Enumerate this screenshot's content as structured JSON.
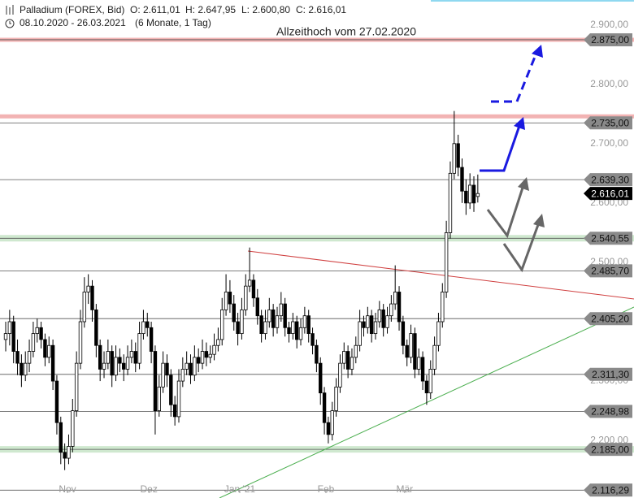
{
  "chart_data": {
    "type": "candlestick",
    "title": "Palladium (FOREX, Bid)",
    "header": {
      "o": "O: 2.611,01",
      "h": "H: 2.647,95",
      "l": "L: 2.600,80",
      "c": "C: 2.616,01",
      "range": "08.10.2020 - 26.03.2021",
      "period": "(6 Monate, 1 Tag)"
    },
    "annotation": "Allzeithoch vom 27.02.2020",
    "ylim": [
      2103,
      2942
    ],
    "xlim": [
      -1.45,
      159.7
    ],
    "yticks": [
      {
        "value": 2900,
        "label": "2.900,00"
      },
      {
        "value": 2800,
        "label": "2.800,00"
      },
      {
        "value": 2700,
        "label": "2.700,00"
      },
      {
        "value": 2600,
        "label": "2.600,00"
      },
      {
        "value": 2500,
        "label": "2.500,00"
      },
      {
        "value": 2300,
        "label": "2.300,00"
      },
      {
        "value": 2200,
        "label": "2.200,00"
      }
    ],
    "xticks": [
      {
        "value": 15.7,
        "label": "Nov"
      },
      {
        "value": 36.4,
        "label": "Dez"
      },
      {
        "value": 59.5,
        "label": "Jan '21"
      },
      {
        "value": 81.4,
        "label": "Feb"
      },
      {
        "value": 101.4,
        "label": "Mär"
      }
    ],
    "levels": [
      {
        "value": 2875,
        "label": "2.875,00"
      },
      {
        "value": 2735,
        "label": "2.735,00"
      },
      {
        "value": 2639.3,
        "label": "2.639,30"
      },
      {
        "value": 2616.01,
        "label": "2.616,01",
        "current": true
      },
      {
        "value": 2540.55,
        "label": "2.540,55"
      },
      {
        "value": 2485.7,
        "label": "2.485,70"
      },
      {
        "value": 2405.2,
        "label": "2.405,20"
      },
      {
        "value": 2311.3,
        "label": "2.311,30"
      },
      {
        "value": 2248.98,
        "label": "2.248,98"
      },
      {
        "value": 2185,
        "label": "2.185,00"
      },
      {
        "value": 2116.29,
        "label": "2.116,29"
      }
    ],
    "zones": [
      {
        "value": 2875,
        "color": "#f2b3b3"
      },
      {
        "value": 2746,
        "color": "#f2b3b3"
      },
      {
        "value": 2540.55,
        "color": "#cfe8cf"
      },
      {
        "value": 2185,
        "color": "#cfe8cf"
      }
    ],
    "candles": [
      [
        2370,
        2400,
        2350,
        2380
      ],
      [
        2380,
        2420,
        2360,
        2400
      ],
      [
        2400,
        2410,
        2330,
        2350
      ],
      [
        2350,
        2370,
        2310,
        2330
      ],
      [
        2330,
        2345,
        2290,
        2310
      ],
      [
        2310,
        2350,
        2300,
        2330
      ],
      [
        2330,
        2370,
        2315,
        2350
      ],
      [
        2350,
        2400,
        2340,
        2380
      ],
      [
        2380,
        2405,
        2365,
        2390
      ],
      [
        2390,
        2400,
        2355,
        2370
      ],
      [
        2370,
        2380,
        2325,
        2340
      ],
      [
        2340,
        2375,
        2330,
        2360
      ],
      [
        2360,
        2370,
        2285,
        2300
      ],
      [
        2300,
        2310,
        2210,
        2230
      ],
      [
        2230,
        2240,
        2160,
        2180
      ],
      [
        2180,
        2195,
        2150,
        2170
      ],
      [
        2170,
        2210,
        2160,
        2190
      ],
      [
        2190,
        2270,
        2180,
        2250
      ],
      [
        2250,
        2350,
        2240,
        2330
      ],
      [
        2330,
        2420,
        2320,
        2400
      ],
      [
        2400,
        2475,
        2390,
        2450
      ],
      [
        2450,
        2480,
        2430,
        2460
      ],
      [
        2460,
        2470,
        2400,
        2420
      ],
      [
        2420,
        2430,
        2340,
        2360
      ],
      [
        2360,
        2370,
        2300,
        2320
      ],
      [
        2320,
        2350,
        2305,
        2330
      ],
      [
        2330,
        2370,
        2320,
        2350
      ],
      [
        2350,
        2360,
        2290,
        2310
      ],
      [
        2310,
        2360,
        2300,
        2340
      ],
      [
        2340,
        2355,
        2315,
        2330
      ],
      [
        2330,
        2345,
        2300,
        2320
      ],
      [
        2320,
        2360,
        2310,
        2340
      ],
      [
        2340,
        2370,
        2330,
        2350
      ],
      [
        2350,
        2365,
        2315,
        2330
      ],
      [
        2330,
        2400,
        2320,
        2380
      ],
      [
        2380,
        2420,
        2370,
        2400
      ],
      [
        2400,
        2415,
        2375,
        2390
      ],
      [
        2390,
        2400,
        2330,
        2350
      ],
      [
        2350,
        2360,
        2210,
        2250
      ],
      [
        2250,
        2310,
        2240,
        2290
      ],
      [
        2290,
        2350,
        2280,
        2330
      ],
      [
        2330,
        2345,
        2290,
        2310
      ],
      [
        2310,
        2320,
        2240,
        2260
      ],
      [
        2260,
        2275,
        2225,
        2240
      ],
      [
        2240,
        2320,
        2230,
        2300
      ],
      [
        2300,
        2340,
        2290,
        2320
      ],
      [
        2320,
        2350,
        2310,
        2330
      ],
      [
        2330,
        2345,
        2295,
        2310
      ],
      [
        2310,
        2360,
        2300,
        2340
      ],
      [
        2340,
        2355,
        2315,
        2330
      ],
      [
        2330,
        2370,
        2320,
        2350
      ],
      [
        2350,
        2365,
        2325,
        2340
      ],
      [
        2340,
        2360,
        2330,
        2345
      ],
      [
        2345,
        2380,
        2335,
        2360
      ],
      [
        2360,
        2390,
        2350,
        2370
      ],
      [
        2370,
        2440,
        2360,
        2420
      ],
      [
        2420,
        2480,
        2410,
        2450
      ],
      [
        2450,
        2470,
        2415,
        2430
      ],
      [
        2430,
        2445,
        2385,
        2400
      ],
      [
        2400,
        2415,
        2360,
        2380
      ],
      [
        2380,
        2440,
        2370,
        2420
      ],
      [
        2420,
        2480,
        2410,
        2460
      ],
      [
        2460,
        2525,
        2450,
        2470
      ],
      [
        2470,
        2480,
        2425,
        2440
      ],
      [
        2440,
        2455,
        2395,
        2410
      ],
      [
        2410,
        2420,
        2365,
        2380
      ],
      [
        2380,
        2420,
        2370,
        2400
      ],
      [
        2400,
        2440,
        2390,
        2420
      ],
      [
        2420,
        2430,
        2375,
        2390
      ],
      [
        2390,
        2425,
        2380,
        2410
      ],
      [
        2410,
        2450,
        2400,
        2430
      ],
      [
        2430,
        2440,
        2375,
        2390
      ],
      [
        2390,
        2400,
        2365,
        2380
      ],
      [
        2380,
        2415,
        2370,
        2400
      ],
      [
        2400,
        2410,
        2355,
        2370
      ],
      [
        2370,
        2405,
        2360,
        2390
      ],
      [
        2390,
        2425,
        2380,
        2410
      ],
      [
        2410,
        2420,
        2365,
        2380
      ],
      [
        2380,
        2390,
        2345,
        2360
      ],
      [
        2360,
        2370,
        2315,
        2330
      ],
      [
        2330,
        2340,
        2260,
        2280
      ],
      [
        2280,
        2290,
        2210,
        2230
      ],
      [
        2230,
        2240,
        2195,
        2210
      ],
      [
        2210,
        2265,
        2200,
        2250
      ],
      [
        2250,
        2305,
        2240,
        2290
      ],
      [
        2290,
        2345,
        2280,
        2330
      ],
      [
        2330,
        2365,
        2320,
        2350
      ],
      [
        2350,
        2360,
        2305,
        2320
      ],
      [
        2320,
        2355,
        2310,
        2340
      ],
      [
        2340,
        2375,
        2330,
        2360
      ],
      [
        2360,
        2420,
        2350,
        2400
      ],
      [
        2400,
        2410,
        2375,
        2390
      ],
      [
        2390,
        2425,
        2380,
        2410
      ],
      [
        2410,
        2420,
        2365,
        2380
      ],
      [
        2380,
        2415,
        2370,
        2400
      ],
      [
        2400,
        2435,
        2390,
        2420
      ],
      [
        2420,
        2430,
        2375,
        2390
      ],
      [
        2390,
        2425,
        2380,
        2410
      ],
      [
        2410,
        2445,
        2400,
        2430
      ],
      [
        2430,
        2495,
        2420,
        2450
      ],
      [
        2450,
        2460,
        2385,
        2400
      ],
      [
        2400,
        2410,
        2345,
        2360
      ],
      [
        2360,
        2370,
        2325,
        2340
      ],
      [
        2340,
        2395,
        2330,
        2380
      ],
      [
        2380,
        2390,
        2305,
        2320
      ],
      [
        2320,
        2355,
        2310,
        2340
      ],
      [
        2340,
        2350,
        2285,
        2300
      ],
      [
        2300,
        2310,
        2260,
        2280
      ],
      [
        2280,
        2335,
        2270,
        2320
      ],
      [
        2320,
        2375,
        2310,
        2360
      ],
      [
        2360,
        2415,
        2350,
        2400
      ],
      [
        2400,
        2465,
        2390,
        2450
      ],
      [
        2450,
        2570,
        2440,
        2550
      ],
      [
        2550,
        2670,
        2540,
        2650
      ],
      [
        2650,
        2755,
        2640,
        2700
      ],
      [
        2700,
        2715,
        2645,
        2660
      ],
      [
        2660,
        2675,
        2600,
        2620
      ],
      [
        2620,
        2640,
        2580,
        2600
      ],
      [
        2600,
        2650,
        2590,
        2630
      ],
      [
        2630,
        2645,
        2585,
        2600
      ],
      [
        2611.01,
        2647.95,
        2600.8,
        2616.01
      ]
    ]
  }
}
